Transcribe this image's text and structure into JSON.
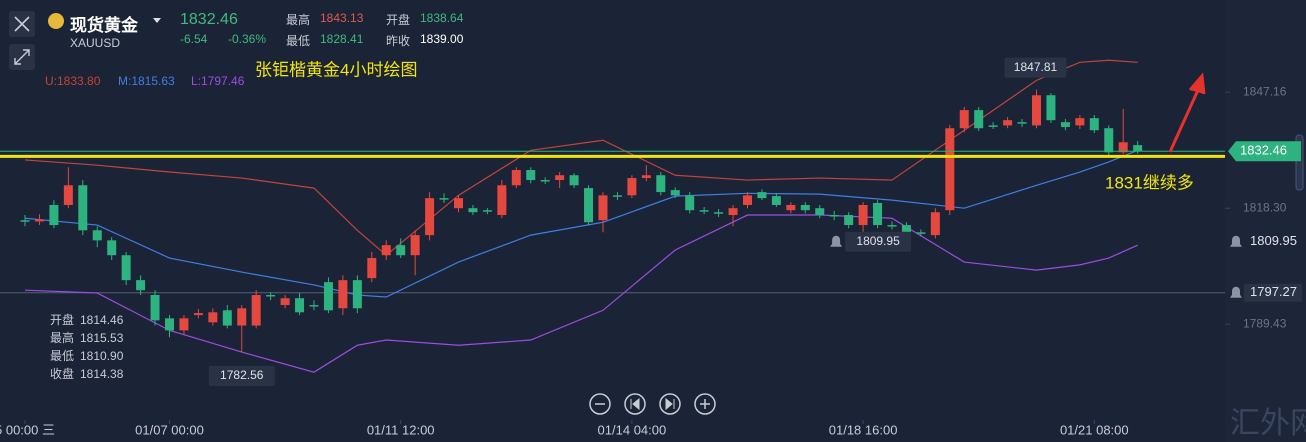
{
  "header": {
    "name": "现货黄金",
    "symbol": "XAUUSD",
    "price": "1832.46",
    "change": "-6.54",
    "change_pct": "-0.36%",
    "high_label": "最高",
    "high": "1843.13",
    "open_label": "开盘",
    "open": "1838.64",
    "low_label": "最低",
    "low": "1828.41",
    "prev_label": "昨收",
    "prev": "1839.00"
  },
  "watermark": "汇外网",
  "chart_data": {
    "type": "candlestick",
    "title": "张钜楷黄金4小时绘图",
    "annotation": "1831继续多",
    "up_color": "#e4483e",
    "down_color": "#2db37f",
    "open": [
      1815.3,
      1815.0,
      1819.1,
      1819.1,
      1824.0,
      1812.8,
      1810.3,
      1806.6,
      1800.4,
      1796.7,
      1790.9,
      1787.9,
      1791.7,
      1789.9,
      1792.9,
      1789.1,
      1789.1,
      1796.7,
      1794.2,
      1795.9,
      1794.2,
      1799.9,
      1793.4,
      1800.4,
      1800.9,
      1806.6,
      1809.1,
      1806.6,
      1811.6,
      1820.8,
      1818.3,
      1818.3,
      1817.8,
      1816.6,
      1824.0,
      1827.8,
      1825.3,
      1825.3,
      1826.5,
      1823.3,
      1815.3,
      1821.5,
      1821.5,
      1825.8,
      1826.5,
      1822.8,
      1821.5,
      1817.8,
      1817.3,
      1816.6,
      1819.1,
      1822.3,
      1821.3,
      1817.8,
      1819.1,
      1818.3,
      1816.6,
      1816.6,
      1814.1,
      1819.6,
      1814.1,
      1814.1,
      1812.3,
      1811.6,
      1817.8,
      1838.2,
      1842.7,
      1838.9,
      1838.9,
      1839.7,
      1838.9,
      1846.4,
      1839.7,
      1838.9,
      1840.7,
      1838.2,
      1832.2,
      1834.0
    ],
    "high": [
      1816.6,
      1816.8,
      1820.3,
      1828.5,
      1825.3,
      1813.8,
      1811.1,
      1807.4,
      1801.6,
      1797.9,
      1791.7,
      1791.7,
      1793.2,
      1793.4,
      1794.2,
      1794.2,
      1797.9,
      1797.4,
      1796.7,
      1797.2,
      1795.4,
      1801.1,
      1801.6,
      1801.6,
      1807.4,
      1810.3,
      1810.8,
      1812.8,
      1822.3,
      1822.0,
      1821.5,
      1819.1,
      1818.3,
      1825.3,
      1828.5,
      1828.5,
      1826.0,
      1827.3,
      1827.0,
      1824.0,
      1822.3,
      1822.3,
      1826.5,
      1829.0,
      1827.3,
      1823.5,
      1822.3,
      1818.6,
      1818.1,
      1819.1,
      1822.3,
      1823.0,
      1822.0,
      1819.8,
      1819.8,
      1819.1,
      1817.6,
      1817.3,
      1819.8,
      1820.3,
      1815.0,
      1814.8,
      1813.0,
      1818.3,
      1839.0,
      1843.5,
      1843.5,
      1839.7,
      1841.0,
      1840.5,
      1847.81,
      1846.9,
      1840.5,
      1841.5,
      1841.5,
      1838.9,
      1843.0,
      1835.0
    ],
    "low": [
      1813.8,
      1814.1,
      1813.3,
      1818.3,
      1811.6,
      1808.6,
      1805.4,
      1799.2,
      1796.7,
      1789.1,
      1786.2,
      1786.8,
      1790.9,
      1789.1,
      1788.4,
      1782.56,
      1788.4,
      1795.4,
      1793.4,
      1791.7,
      1792.9,
      1792.2,
      1791.7,
      1792.2,
      1799.9,
      1805.4,
      1805.9,
      1801.6,
      1810.3,
      1819.6,
      1817.3,
      1816.6,
      1816.8,
      1815.8,
      1823.3,
      1824.5,
      1824.3,
      1823.3,
      1823.3,
      1814.1,
      1812.3,
      1820.3,
      1820.8,
      1825.0,
      1821.5,
      1820.8,
      1817.0,
      1816.8,
      1816.1,
      1813.8,
      1818.3,
      1820.3,
      1818.6,
      1817.0,
      1817.0,
      1815.8,
      1815.3,
      1813.3,
      1809.95,
      1813.3,
      1813.0,
      1811.6,
      1811.3,
      1810.8,
      1816.6,
      1837.2,
      1837.5,
      1838.0,
      1838.2,
      1838.5,
      1838.2,
      1839.5,
      1837.7,
      1838.0,
      1837.0,
      1831.5,
      1831.7,
      1831.9
    ],
    "close": [
      1815.0,
      1815.5,
      1814.1,
      1824.0,
      1812.8,
      1810.3,
      1806.6,
      1800.4,
      1797.9,
      1790.4,
      1787.9,
      1790.9,
      1792.2,
      1792.4,
      1789.1,
      1793.4,
      1796.7,
      1796.4,
      1795.9,
      1792.4,
      1793.9,
      1792.9,
      1800.4,
      1793.4,
      1805.9,
      1809.1,
      1806.6,
      1811.6,
      1820.8,
      1820.5,
      1820.8,
      1817.3,
      1817.6,
      1824.0,
      1827.8,
      1825.3,
      1825.0,
      1826.5,
      1824.0,
      1814.8,
      1821.5,
      1821.3,
      1825.8,
      1826.5,
      1822.3,
      1821.5,
      1817.8,
      1817.6,
      1817.1,
      1818.3,
      1821.5,
      1820.8,
      1819.1,
      1819.1,
      1817.8,
      1816.6,
      1816.3,
      1814.1,
      1819.1,
      1814.1,
      1813.8,
      1812.3,
      1812.1,
      1817.3,
      1838.2,
      1842.7,
      1838.2,
      1838.7,
      1840.2,
      1839.5,
      1846.4,
      1840.2,
      1838.5,
      1840.7,
      1837.7,
      1832.2,
      1834.7,
      1832.46
    ],
    "high_label_index": 70,
    "low_label_indices": [
      15,
      58
    ],
    "bands": [
      {
        "name": "U:1833.80",
        "color": "#c2443a",
        "x": [
          0,
          5,
          10,
          15,
          20,
          23,
          25,
          30,
          35,
          40,
          45,
          50,
          55,
          60,
          65,
          70,
          73,
          75,
          77
        ],
        "values": [
          1830.3,
          1829.0,
          1827.3,
          1825.8,
          1823.3,
          1812.8,
          1806.6,
          1821.5,
          1832.7,
          1835.2,
          1826.5,
          1825.3,
          1825.8,
          1825.3,
          1837.7,
          1850.1,
          1854.6,
          1855.1,
          1854.6
        ]
      },
      {
        "name": "M:1815.63",
        "color": "#3f7fe0",
        "x": [
          0,
          5,
          10,
          15,
          20,
          23,
          25,
          30,
          35,
          40,
          45,
          50,
          55,
          60,
          65,
          70,
          73,
          75,
          77
        ],
        "values": [
          1815.8,
          1814.1,
          1805.9,
          1802.4,
          1799.2,
          1796.7,
          1796.2,
          1804.9,
          1811.6,
          1814.8,
          1821.3,
          1822.0,
          1821.8,
          1820.3,
          1818.3,
          1824.0,
          1827.3,
          1829.8,
          1832.7
        ]
      },
      {
        "name": "L:1797.46",
        "color": "#9b4ee0",
        "x": [
          0,
          5,
          10,
          15,
          20,
          23,
          25,
          30,
          35,
          40,
          45,
          50,
          55,
          60,
          65,
          70,
          73,
          75,
          77
        ],
        "values": [
          1797.9,
          1797.2,
          1787.9,
          1782.5,
          1777.5,
          1784.2,
          1785.5,
          1784.2,
          1785.5,
          1792.9,
          1807.9,
          1816.6,
          1816.6,
          1815.8,
          1804.9,
          1802.9,
          1804.2,
          1805.9,
          1809.1
        ]
      }
    ],
    "hline": 1831.2,
    "hline_color": "#f2e600",
    "alerts": [
      1809.95,
      1797.27
    ],
    "ylim": [
      1765.6,
      1870.1
    ],
    "yticks": [
      1847.16,
      {
        "value": 1818.3,
        "label": "1818.30"
      },
      1789.43
    ],
    "xticks": [
      {
        "value": 0,
        "label": "5 00:00 三"
      },
      {
        "value": 10,
        "label": "01/07 00:00"
      },
      {
        "value": 26,
        "label": "01/11 12:00"
      },
      {
        "value": 42,
        "label": "01/14 04:00"
      },
      {
        "value": 58,
        "label": "01/18 16:00"
      },
      {
        "value": 74,
        "label": "01/21 08:00"
      }
    ],
    "info": {
      "labels": [
        "开盘",
        "最高",
        "最低",
        "收盘"
      ],
      "values": [
        "1814.46",
        "1815.53",
        "1810.90",
        "1814.38"
      ]
    }
  }
}
